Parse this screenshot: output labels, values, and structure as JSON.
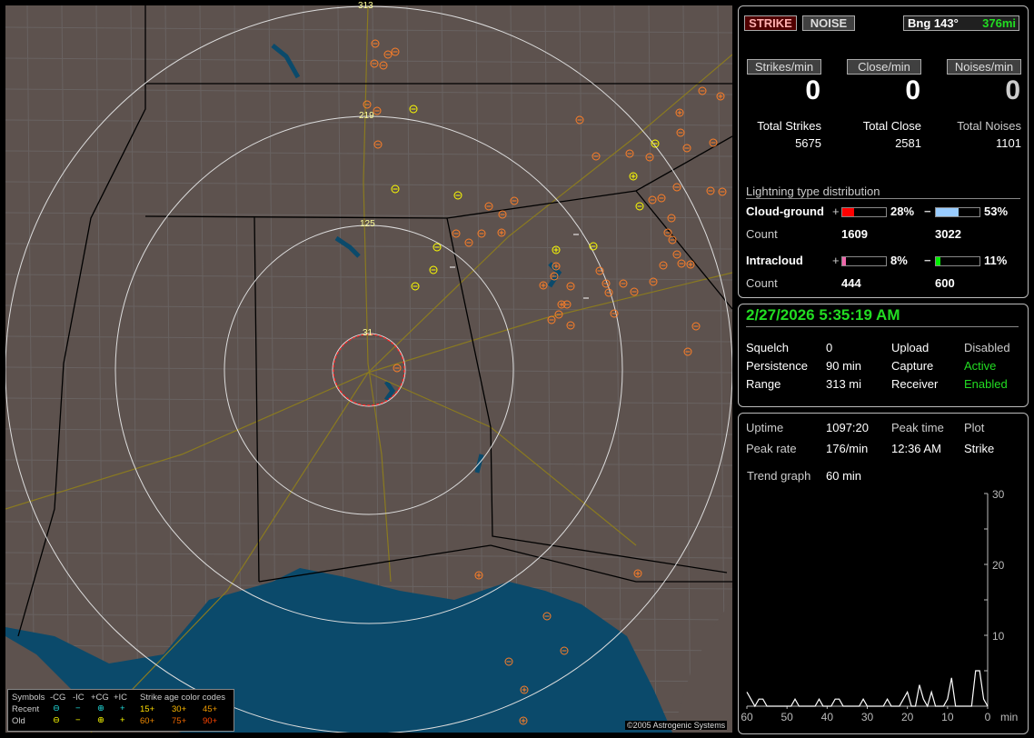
{
  "map": {
    "range_rings": [
      "31",
      "125",
      "219",
      "313"
    ],
    "copyright": "©2005 Astrogenic Systems",
    "colors": {
      "land": "#5d524e",
      "water": "#0b4a6b",
      "state_lines": "#000000",
      "county_lines": "#6e6a6a",
      "roads": "#8a7a20",
      "rings": "#dddddd",
      "close_ring": "#ff2020",
      "strike_old": "#ff7f27",
      "strike_recent": "#ffff00"
    }
  },
  "legend": {
    "symbols_label": "Symbols",
    "cols": [
      "-CG",
      "-IC",
      "+CG",
      "+IC"
    ],
    "recent_label": "Recent",
    "old_label": "Old",
    "age_title": "Strike age color codes",
    "ages_recent": [
      "15+",
      "30+",
      "45+"
    ],
    "ages_old": [
      "60+",
      "75+",
      "90+"
    ],
    "recent_color": "#22dddd",
    "old_color": "#ffff00"
  },
  "top": {
    "strike_button": "STRIKE",
    "noise_button": "NOISE",
    "bearing": "Bng 143°",
    "distance": "376mi"
  },
  "rates": [
    {
      "label": "Strikes/min",
      "value": "0",
      "total_label": "Total Strikes",
      "total": "5675"
    },
    {
      "label": "Close/min",
      "value": "0",
      "total_label": "Total Close",
      "total": "2581"
    },
    {
      "label": "Noises/min",
      "value": "0",
      "total_label": "Total Noises",
      "total": "1101"
    }
  ],
  "distribution": {
    "title": "Lightning type distribution",
    "cg_label": "Cloud-ground",
    "ic_label": "Intracloud",
    "count_label": "Count",
    "plus": "+",
    "minus": "−",
    "cg_pos": {
      "pct_text": "28%",
      "pct": 28,
      "count": "1609",
      "color": "#ff0000"
    },
    "cg_neg": {
      "pct_text": "53%",
      "pct": 53,
      "count": "3022",
      "color": "#99ccff"
    },
    "ic_pos": {
      "pct_text": "8%",
      "pct": 8,
      "count": "444",
      "color": "#ee66aa"
    },
    "ic_neg": {
      "pct_text": "11%",
      "pct": 11,
      "count": "600",
      "color": "#00ee00"
    }
  },
  "status": {
    "datetime": "2/27/2026 5:35:19 AM",
    "rows": [
      {
        "k1": "Squelch",
        "v1": "0",
        "k2": "Upload",
        "v2": "Disabled"
      },
      {
        "k1": "Persistence",
        "v1": "90 min",
        "k2": "Capture",
        "v2": "Active"
      },
      {
        "k1": "Range",
        "v1": "313 mi",
        "k2": "Receiver",
        "v2": "Enabled"
      }
    ]
  },
  "stats": {
    "uptime_label": "Uptime",
    "uptime": "1097:20",
    "peak_time_label": "Peak time",
    "peak_time": "12:36 AM",
    "plot_label": "Plot",
    "plot": "Strike",
    "peak_rate_label": "Peak rate",
    "peak_rate": "176/min",
    "trend_label": "Trend graph",
    "trend": "60 min"
  },
  "chart_data": {
    "type": "line",
    "xlabel": "min",
    "x_ticks": [
      "60",
      "50",
      "40",
      "30",
      "20",
      "10",
      "0"
    ],
    "y_ticks": [
      "10",
      "20",
      "30"
    ],
    "xlim": [
      60,
      0
    ],
    "ylim": [
      0,
      30
    ],
    "minutes_ago": [
      60,
      59,
      58,
      57,
      56,
      55,
      54,
      53,
      52,
      51,
      50,
      49,
      48,
      47,
      46,
      45,
      44,
      43,
      42,
      41,
      40,
      39,
      38,
      37,
      36,
      35,
      34,
      33,
      32,
      31,
      30,
      29,
      28,
      27,
      26,
      25,
      24,
      23,
      22,
      21,
      20,
      19,
      18,
      17,
      16,
      15,
      14,
      13,
      12,
      11,
      10,
      9,
      8,
      7,
      6,
      5,
      4,
      3,
      2,
      1,
      0
    ],
    "values": [
      2,
      1,
      0,
      1,
      1,
      0,
      0,
      0,
      0,
      0,
      0,
      0,
      1,
      0,
      0,
      0,
      0,
      0,
      1,
      0,
      0,
      0,
      1,
      1,
      0,
      0,
      0,
      0,
      0,
      1,
      0,
      0,
      0,
      0,
      0,
      1,
      0,
      0,
      0,
      1,
      2,
      0,
      0,
      3,
      1,
      0,
      2,
      0,
      0,
      0,
      1,
      4,
      0,
      0,
      0,
      0,
      0,
      5,
      5,
      1,
      0
    ]
  }
}
